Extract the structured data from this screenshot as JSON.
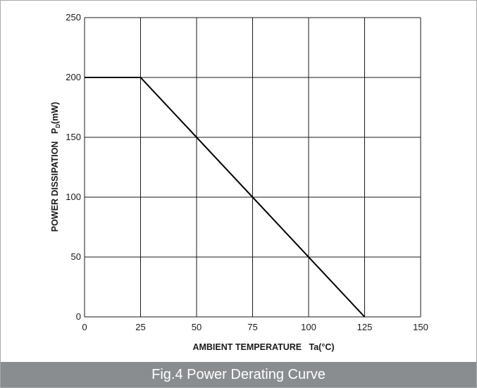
{
  "caption": "Fig.4 Power Derating Curve",
  "colors": {
    "caption_bg": "#8a8d90",
    "caption_text": "#ffffff",
    "line": "#000000",
    "grid": "#1a1a1a"
  },
  "chart_data": {
    "type": "line",
    "title": "",
    "xlabel": "AMBIENT TEMPERATURE   Ta(°C)",
    "ylabel_main": "POWER DISSIPATION   P",
    "ylabel_sub": "D",
    "ylabel_unit": "(mW)",
    "xlim": [
      0,
      150
    ],
    "ylim": [
      0,
      250
    ],
    "xticks": [
      0,
      25,
      50,
      75,
      100,
      125,
      150
    ],
    "yticks": [
      0,
      50,
      100,
      150,
      200,
      250
    ],
    "grid": true,
    "series": [
      {
        "x": [
          0,
          25,
          125
        ],
        "y": [
          200,
          200,
          0
        ]
      }
    ]
  }
}
